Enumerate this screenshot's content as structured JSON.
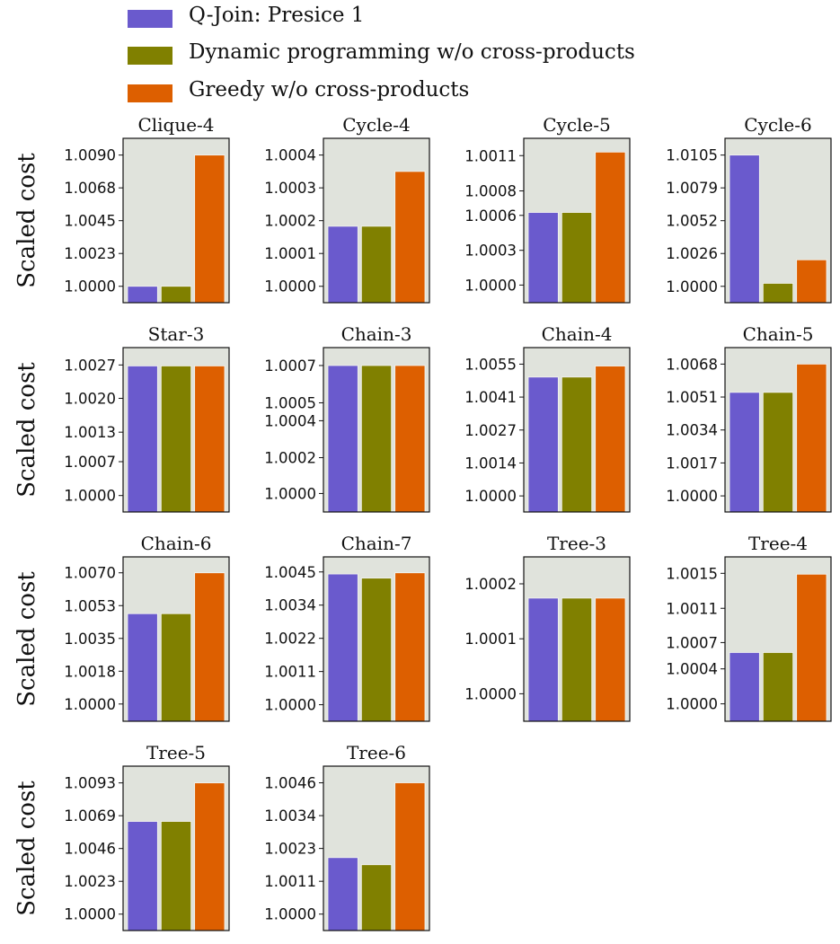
{
  "chart_data": {
    "type": "bar",
    "ylabel": "Scaled cost",
    "legend_placement": "top",
    "grid": false,
    "series": [
      {
        "name": "Q-Join: Presice 1",
        "color": "#6a5acd"
      },
      {
        "name": "Dynamic programming w/o cross-products",
        "color": "#808000"
      },
      {
        "name": "Greedy w/o cross-products",
        "color": "#dd5f00"
      }
    ],
    "panels": [
      {
        "title": "Clique-4",
        "ylim": [
          0.998875,
          1.010148
        ],
        "values": [
          1.0,
          1.0,
          1.009
        ],
        "ticks": [
          {
            "v": 1.0,
            "label": "1.0000"
          },
          {
            "v": 1.00225,
            "label": "1.0023"
          },
          {
            "v": 1.0045,
            "label": "1.0045"
          },
          {
            "v": 1.00675,
            "label": "1.0068"
          },
          {
            "v": 1.009,
            "label": "1.0090"
          }
        ]
      },
      {
        "title": "Cycle-4",
        "ylim": [
          0.99995,
          1.000451
        ],
        "values": [
          1.000183,
          1.000183,
          1.00035
        ],
        "ticks": [
          {
            "v": 1.0,
            "label": "1.0000"
          },
          {
            "v": 1.0001,
            "label": "1.0001"
          },
          {
            "v": 1.0002,
            "label": "1.0002"
          },
          {
            "v": 1.0003,
            "label": "1.0003"
          },
          {
            "v": 1.0004,
            "label": "1.0004"
          }
        ]
      },
      {
        "title": "Cycle-5",
        "ylim": [
          0.99985,
          1.001247
        ],
        "values": [
          1.000617,
          1.000617,
          1.00113
        ],
        "ticks": [
          {
            "v": 1.0,
            "label": "1.0000"
          },
          {
            "v": 1.000295,
            "label": "1.0003"
          },
          {
            "v": 1.000592,
            "label": "1.0006"
          },
          {
            "v": 1.0008,
            "label": "1.0008"
          },
          {
            "v": 1.0011,
            "label": "1.0011"
          }
        ]
      },
      {
        "title": "Cycle-6",
        "ylim": [
          0.99869,
          1.01184
        ],
        "values": [
          1.0105,
          1.00024,
          1.00212
        ],
        "ticks": [
          {
            "v": 1.0,
            "label": "1.0000"
          },
          {
            "v": 1.002625,
            "label": "1.0026"
          },
          {
            "v": 1.00525,
            "label": "1.0052"
          },
          {
            "v": 1.007875,
            "label": "1.0079"
          },
          {
            "v": 1.0105,
            "label": "1.0105"
          }
        ]
      },
      {
        "title": "Star-3",
        "ylim": [
          0.99966,
          1.003059
        ],
        "values": [
          1.00268,
          1.00268,
          1.00268
        ],
        "ticks": [
          {
            "v": 1.0,
            "label": "1.0000"
          },
          {
            "v": 1.0007,
            "label": "1.0007"
          },
          {
            "v": 1.00131,
            "label": "1.0013"
          },
          {
            "v": 1.00201,
            "label": "1.0020"
          },
          {
            "v": 1.0027,
            "label": "1.0027"
          }
        ]
      },
      {
        "title": "Chain-3",
        "ylim": [
          0.999899,
          1.000798
        ],
        "values": [
          1.0007,
          1.0007,
          1.0007
        ],
        "ticks": [
          {
            "v": 1.0,
            "label": "1.0000"
          },
          {
            "v": 1.000196,
            "label": "1.0002"
          },
          {
            "v": 1.000398,
            "label": "1.0004"
          },
          {
            "v": 1.000496,
            "label": "1.0005"
          },
          {
            "v": 1.0007,
            "label": "1.0007"
          }
        ]
      },
      {
        "title": "Chain-4",
        "ylim": [
          0.99933,
          1.00619
        ],
        "values": [
          1.00496,
          1.00496,
          1.00542
        ],
        "ticks": [
          {
            "v": 1.0,
            "label": "1.0000"
          },
          {
            "v": 1.001375,
            "label": "1.0014"
          },
          {
            "v": 1.00275,
            "label": "1.0027"
          },
          {
            "v": 1.004125,
            "label": "1.0041"
          },
          {
            "v": 1.0055,
            "label": "1.0055"
          }
        ]
      },
      {
        "title": "Chain-5",
        "ylim": [
          0.99917,
          1.00765
        ],
        "values": [
          1.00534,
          1.00534,
          1.0068
        ],
        "ticks": [
          {
            "v": 1.0,
            "label": "1.0000"
          },
          {
            "v": 1.0017,
            "label": "1.0017"
          },
          {
            "v": 1.0034,
            "label": "1.0034"
          },
          {
            "v": 1.0051,
            "label": "1.0051"
          },
          {
            "v": 1.0068,
            "label": "1.0068"
          }
        ]
      },
      {
        "title": "Chain-6",
        "ylim": [
          0.99908,
          1.00785
        ],
        "values": [
          1.00482,
          1.00482,
          1.007
        ],
        "ticks": [
          {
            "v": 1.0,
            "label": "1.0000"
          },
          {
            "v": 1.00175,
            "label": "1.0018"
          },
          {
            "v": 1.0035,
            "label": "1.0035"
          },
          {
            "v": 1.00525,
            "label": "1.0053"
          },
          {
            "v": 1.007,
            "label": "1.0070"
          }
        ]
      },
      {
        "title": "Chain-7",
        "ylim": [
          0.99944,
          1.00501
        ],
        "values": [
          1.00443,
          1.00429,
          1.00447
        ],
        "ticks": [
          {
            "v": 1.0,
            "label": "1.0000"
          },
          {
            "v": 1.001125,
            "label": "1.0011"
          },
          {
            "v": 1.00225,
            "label": "1.0022"
          },
          {
            "v": 1.003375,
            "label": "1.0034"
          },
          {
            "v": 1.0045,
            "label": "1.0045"
          }
        ]
      },
      {
        "title": "Tree-3",
        "ylim": [
          0.99995,
          1.000249
        ],
        "values": [
          1.000174,
          1.000174,
          1.000174
        ],
        "ticks": [
          {
            "v": 1.0,
            "label": "1.0000"
          },
          {
            "v": 1.0001,
            "label": "1.0001"
          },
          {
            "v": 1.0002,
            "label": "1.0002"
          }
        ]
      },
      {
        "title": "Tree-4",
        "ylim": [
          0.9998,
          1.001689
        ],
        "values": [
          1.00059,
          1.00059,
          1.00149
        ],
        "ticks": [
          {
            "v": 1.0,
            "label": "1.0000"
          },
          {
            "v": 1.000402,
            "label": "1.0004"
          },
          {
            "v": 1.000704,
            "label": "1.0007"
          },
          {
            "v": 1.001098,
            "label": "1.0011"
          },
          {
            "v": 1.0015,
            "label": "1.0015"
          }
        ]
      },
      {
        "title": "Tree-5",
        "ylim": [
          0.998838,
          1.010486
        ],
        "values": [
          1.00657,
          1.00657,
          1.0093
        ],
        "ticks": [
          {
            "v": 1.0,
            "label": "1.0000"
          },
          {
            "v": 1.002325,
            "label": "1.0023"
          },
          {
            "v": 1.00465,
            "label": "1.0046"
          },
          {
            "v": 1.006975,
            "label": "1.0069"
          },
          {
            "v": 1.0093,
            "label": "1.0093"
          }
        ]
      },
      {
        "title": "Tree-6",
        "ylim": [
          0.999425,
          1.005183
        ],
        "values": [
          1.00198,
          1.00173,
          1.0046
        ],
        "ticks": [
          {
            "v": 1.0,
            "label": "1.0000"
          },
          {
            "v": 1.00115,
            "label": "1.0011"
          },
          {
            "v": 1.0023,
            "label": "1.0023"
          },
          {
            "v": 1.00345,
            "label": "1.0034"
          },
          {
            "v": 1.0046,
            "label": "1.0046"
          }
        ]
      }
    ]
  }
}
